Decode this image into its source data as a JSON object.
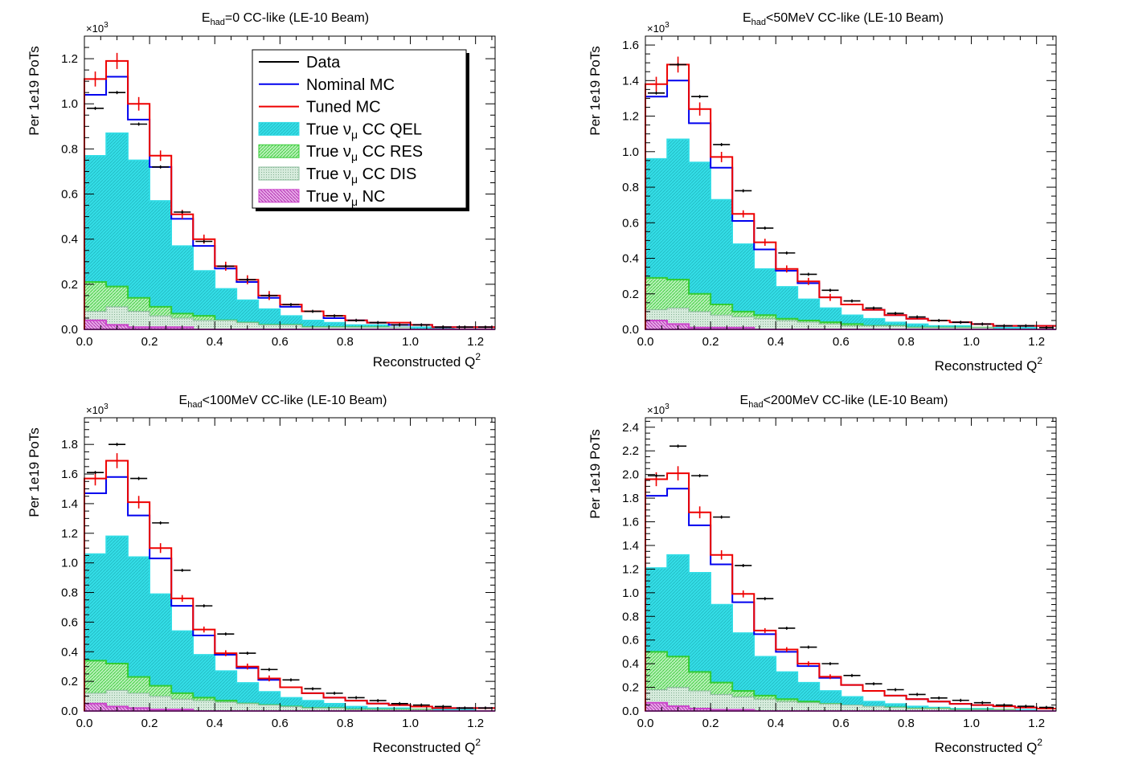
{
  "legend": {
    "entries": [
      {
        "label": "Data",
        "color": "#000000",
        "kind": "line"
      },
      {
        "label": "Nominal MC",
        "color": "#0000ee",
        "kind": "line"
      },
      {
        "label": "Tuned MC",
        "color": "#ee0000",
        "kind": "line"
      },
      {
        "label": "True ",
        "label_sub_greek": "ν",
        "label_sub": "μ",
        "label_tail": " CC QEL",
        "color": "#33dde6",
        "kind": "fill"
      },
      {
        "label": "True ",
        "label_sub_greek": "ν",
        "label_sub": "μ",
        "label_tail": " CC RES",
        "color": "#33cc33",
        "kind": "fill"
      },
      {
        "label": "True ",
        "label_sub_greek": "ν",
        "label_sub": "μ",
        "label_tail": " CC DIS",
        "color": "#88bb99",
        "kind": "fill"
      },
      {
        "label": "True ",
        "label_sub_greek": "ν",
        "label_sub": "μ",
        "label_tail": " NC",
        "color": "#cc44cc",
        "kind": "fill"
      }
    ]
  },
  "colors": {
    "data": "#000000",
    "nominal": "#0000ee",
    "tuned": "#ee0000",
    "qel": "#33dde6",
    "res": "#33cc33",
    "dis": "#88bb99",
    "nc": "#cc44cc"
  },
  "chart_data": [
    {
      "type": "bar",
      "title_main": "E",
      "title_sub": "had",
      "title_rest": "=0 CC-like (LE-10 Beam)",
      "xlabel": "Reconstructed Q",
      "xlabel_sup": "2",
      "ylabel": "Per 1e19 PoTs",
      "y_multiplier": "×10",
      "y_multiplier_sup": "3",
      "xlim": [
        0,
        1.26
      ],
      "ylim": [
        0,
        1.3
      ],
      "bin_width": 0.0667,
      "xticks": [
        "0.0",
        "0.2",
        "0.4",
        "0.6",
        "0.8",
        "1.0",
        "1.2"
      ],
      "yticks": [
        "0.0",
        "0.2",
        "0.4",
        "0.6",
        "0.8",
        "1.0",
        "1.2"
      ],
      "ytick_values": [
        0,
        0.2,
        0.4,
        0.6,
        0.8,
        1.0,
        1.2
      ],
      "show_legend": true,
      "series": [
        {
          "key": "data",
          "values": [
            0.98,
            1.05,
            0.91,
            0.72,
            0.52,
            0.39,
            0.28,
            0.22,
            0.15,
            0.11,
            0.08,
            0.06,
            0.04,
            0.03,
            0.02,
            0.02,
            0.01,
            0.01,
            0.01
          ]
        },
        {
          "key": "nominal",
          "values": [
            1.04,
            1.12,
            0.93,
            0.72,
            0.49,
            0.37,
            0.27,
            0.21,
            0.14,
            0.1,
            0.08,
            0.05,
            0.04,
            0.03,
            0.02,
            0.02,
            0.01,
            0.01,
            0.01
          ]
        },
        {
          "key": "tuned",
          "values": [
            1.11,
            1.19,
            1.0,
            0.77,
            0.51,
            0.4,
            0.28,
            0.22,
            0.15,
            0.11,
            0.08,
            0.06,
            0.04,
            0.03,
            0.03,
            0.02,
            0.01,
            0.01,
            0.01
          ]
        },
        {
          "key": "qel",
          "values": [
            0.77,
            0.87,
            0.75,
            0.57,
            0.37,
            0.26,
            0.18,
            0.13,
            0.09,
            0.06,
            0.04,
            0.03,
            0.02,
            0.02,
            0.01,
            0.01,
            0.01,
            0.0,
            0.0
          ]
        },
        {
          "key": "res",
          "values": [
            0.21,
            0.19,
            0.14,
            0.1,
            0.07,
            0.06,
            0.04,
            0.03,
            0.02,
            0.02,
            0.01,
            0.01,
            0.01,
            0.01,
            0.0,
            0.0,
            0.0,
            0.0,
            0.0
          ]
        },
        {
          "key": "dis",
          "values": [
            0.08,
            0.1,
            0.08,
            0.06,
            0.05,
            0.04,
            0.04,
            0.03,
            0.02,
            0.02,
            0.01,
            0.01,
            0.01,
            0.01,
            0.01,
            0.0,
            0.0,
            0.0,
            0.0
          ]
        },
        {
          "key": "nc",
          "values": [
            0.04,
            0.02,
            0.01,
            0.01,
            0.01,
            0.0,
            0.0,
            0.0,
            0.0,
            0.0,
            0.0,
            0.0,
            0.0,
            0.0,
            0.0,
            0.0,
            0.0,
            0.0,
            0.0
          ]
        }
      ]
    },
    {
      "type": "bar",
      "title_main": "E",
      "title_sub": "had",
      "title_rest": "<50MeV CC-like (LE-10 Beam)",
      "xlabel": "Reconstructed Q",
      "xlabel_sup": "2",
      "ylabel": "Per 1e19 PoTs",
      "y_multiplier": "×10",
      "y_multiplier_sup": "3",
      "xlim": [
        0,
        1.26
      ],
      "ylim": [
        0,
        1.65
      ],
      "bin_width": 0.0667,
      "xticks": [
        "0.0",
        "0.2",
        "0.4",
        "0.6",
        "0.8",
        "1.0",
        "1.2"
      ],
      "yticks": [
        "0.0",
        "0.2",
        "0.4",
        "0.6",
        "0.8",
        "1.0",
        "1.2",
        "1.4",
        "1.6"
      ],
      "ytick_values": [
        0,
        0.2,
        0.4,
        0.6,
        0.8,
        1.0,
        1.2,
        1.4,
        1.6
      ],
      "show_legend": false,
      "series": [
        {
          "key": "data",
          "values": [
            1.33,
            1.49,
            1.31,
            1.04,
            0.78,
            0.57,
            0.43,
            0.31,
            0.22,
            0.16,
            0.12,
            0.09,
            0.07,
            0.05,
            0.04,
            0.03,
            0.02,
            0.02,
            0.01
          ]
        },
        {
          "key": "nominal",
          "values": [
            1.31,
            1.4,
            1.16,
            0.91,
            0.61,
            0.45,
            0.33,
            0.26,
            0.18,
            0.14,
            0.11,
            0.08,
            0.06,
            0.05,
            0.04,
            0.03,
            0.02,
            0.02,
            0.02
          ]
        },
        {
          "key": "tuned",
          "values": [
            1.38,
            1.49,
            1.24,
            0.97,
            0.65,
            0.49,
            0.34,
            0.27,
            0.18,
            0.14,
            0.11,
            0.08,
            0.06,
            0.05,
            0.04,
            0.03,
            0.02,
            0.02,
            0.02
          ]
        },
        {
          "key": "qel",
          "values": [
            0.96,
            1.07,
            0.94,
            0.73,
            0.48,
            0.34,
            0.24,
            0.17,
            0.12,
            0.08,
            0.06,
            0.04,
            0.03,
            0.02,
            0.02,
            0.01,
            0.01,
            0.01,
            0.0
          ]
        },
        {
          "key": "res",
          "values": [
            0.29,
            0.28,
            0.2,
            0.14,
            0.1,
            0.08,
            0.06,
            0.05,
            0.04,
            0.03,
            0.02,
            0.02,
            0.01,
            0.01,
            0.01,
            0.01,
            0.0,
            0.0,
            0.0
          ]
        },
        {
          "key": "dis",
          "values": [
            0.11,
            0.12,
            0.1,
            0.08,
            0.07,
            0.06,
            0.05,
            0.04,
            0.03,
            0.02,
            0.02,
            0.02,
            0.01,
            0.01,
            0.01,
            0.01,
            0.0,
            0.0,
            0.0
          ]
        },
        {
          "key": "nc",
          "values": [
            0.05,
            0.03,
            0.01,
            0.01,
            0.01,
            0.0,
            0.0,
            0.0,
            0.0,
            0.0,
            0.0,
            0.0,
            0.0,
            0.0,
            0.0,
            0.0,
            0.0,
            0.0,
            0.0
          ]
        }
      ]
    },
    {
      "type": "bar",
      "title_main": "E",
      "title_sub": "had",
      "title_rest": "<100MeV CC-like (LE-10 Beam)",
      "xlabel": "Reconstructed Q",
      "xlabel_sup": "2",
      "ylabel": "Per 1e19 PoTs",
      "y_multiplier": "×10",
      "y_multiplier_sup": "3",
      "xlim": [
        0,
        1.26
      ],
      "ylim": [
        0,
        1.98
      ],
      "bin_width": 0.0667,
      "xticks": [
        "0.0",
        "0.2",
        "0.4",
        "0.6",
        "0.8",
        "1.0",
        "1.2"
      ],
      "yticks": [
        "0.0",
        "0.2",
        "0.4",
        "0.6",
        "0.8",
        "1.0",
        "1.2",
        "1.4",
        "1.6",
        "1.8"
      ],
      "ytick_values": [
        0,
        0.2,
        0.4,
        0.6,
        0.8,
        1.0,
        1.2,
        1.4,
        1.6,
        1.8
      ],
      "show_legend": false,
      "series": [
        {
          "key": "data",
          "values": [
            1.61,
            1.8,
            1.57,
            1.27,
            0.95,
            0.71,
            0.52,
            0.39,
            0.28,
            0.21,
            0.15,
            0.12,
            0.09,
            0.07,
            0.05,
            0.04,
            0.03,
            0.02,
            0.02
          ]
        },
        {
          "key": "nominal",
          "values": [
            1.47,
            1.58,
            1.32,
            1.03,
            0.71,
            0.51,
            0.38,
            0.29,
            0.21,
            0.16,
            0.12,
            0.09,
            0.07,
            0.05,
            0.04,
            0.03,
            0.02,
            0.02,
            0.02
          ]
        },
        {
          "key": "tuned",
          "values": [
            1.57,
            1.69,
            1.41,
            1.1,
            0.76,
            0.55,
            0.39,
            0.3,
            0.22,
            0.16,
            0.12,
            0.09,
            0.07,
            0.05,
            0.04,
            0.03,
            0.02,
            0.02,
            0.02
          ]
        },
        {
          "key": "qel",
          "values": [
            1.06,
            1.18,
            1.04,
            0.79,
            0.54,
            0.38,
            0.27,
            0.19,
            0.13,
            0.09,
            0.07,
            0.05,
            0.03,
            0.02,
            0.02,
            0.01,
            0.01,
            0.01,
            0.0
          ]
        },
        {
          "key": "res",
          "values": [
            0.34,
            0.32,
            0.23,
            0.17,
            0.12,
            0.09,
            0.07,
            0.05,
            0.04,
            0.03,
            0.02,
            0.02,
            0.01,
            0.01,
            0.01,
            0.01,
            0.0,
            0.0,
            0.0
          ]
        },
        {
          "key": "dis",
          "values": [
            0.12,
            0.14,
            0.12,
            0.1,
            0.08,
            0.07,
            0.06,
            0.05,
            0.04,
            0.03,
            0.02,
            0.02,
            0.01,
            0.01,
            0.01,
            0.01,
            0.0,
            0.0,
            0.0
          ]
        },
        {
          "key": "nc",
          "values": [
            0.05,
            0.03,
            0.02,
            0.01,
            0.01,
            0.0,
            0.0,
            0.0,
            0.0,
            0.0,
            0.0,
            0.0,
            0.0,
            0.0,
            0.0,
            0.0,
            0.0,
            0.0,
            0.0
          ]
        }
      ]
    },
    {
      "type": "bar",
      "title_main": "E",
      "title_sub": "had",
      "title_rest": "<200MeV CC-like (LE-10 Beam)",
      "xlabel": "Reconstructed Q",
      "xlabel_sup": "2",
      "ylabel": "Per 1e19 PoTs",
      "y_multiplier": "×10",
      "y_multiplier_sup": "3",
      "xlim": [
        0,
        1.26
      ],
      "ylim": [
        0,
        2.48
      ],
      "bin_width": 0.0667,
      "xticks": [
        "0.0",
        "0.2",
        "0.4",
        "0.6",
        "0.8",
        "1.0",
        "1.2"
      ],
      "yticks": [
        "0.0",
        "0.2",
        "0.4",
        "0.6",
        "0.8",
        "1.0",
        "1.2",
        "1.4",
        "1.6",
        "1.8",
        "2.0",
        "2.2",
        "2.4"
      ],
      "ytick_values": [
        0,
        0.2,
        0.4,
        0.6,
        0.8,
        1.0,
        1.2,
        1.4,
        1.6,
        1.8,
        2.0,
        2.2,
        2.4
      ],
      "show_legend": false,
      "series": [
        {
          "key": "data",
          "values": [
            1.99,
            2.24,
            1.99,
            1.64,
            1.23,
            0.95,
            0.7,
            0.54,
            0.4,
            0.3,
            0.23,
            0.18,
            0.14,
            0.11,
            0.09,
            0.07,
            0.05,
            0.04,
            0.03
          ]
        },
        {
          "key": "nominal",
          "values": [
            1.82,
            1.88,
            1.57,
            1.24,
            0.92,
            0.65,
            0.5,
            0.38,
            0.28,
            0.22,
            0.17,
            0.13,
            0.1,
            0.08,
            0.06,
            0.05,
            0.04,
            0.03,
            0.02
          ]
        },
        {
          "key": "tuned",
          "values": [
            1.96,
            2.01,
            1.68,
            1.32,
            0.99,
            0.68,
            0.52,
            0.4,
            0.29,
            0.22,
            0.17,
            0.13,
            0.1,
            0.08,
            0.06,
            0.05,
            0.04,
            0.03,
            0.02
          ]
        },
        {
          "key": "qel",
          "values": [
            1.21,
            1.32,
            1.17,
            0.9,
            0.66,
            0.46,
            0.33,
            0.24,
            0.17,
            0.12,
            0.08,
            0.06,
            0.04,
            0.03,
            0.02,
            0.02,
            0.01,
            0.01,
            0.0
          ]
        },
        {
          "key": "res",
          "values": [
            0.5,
            0.46,
            0.33,
            0.24,
            0.17,
            0.13,
            0.1,
            0.08,
            0.06,
            0.04,
            0.03,
            0.03,
            0.02,
            0.02,
            0.01,
            0.01,
            0.01,
            0.0,
            0.0
          ]
        },
        {
          "key": "dis",
          "values": [
            0.18,
            0.2,
            0.17,
            0.14,
            0.12,
            0.1,
            0.08,
            0.07,
            0.06,
            0.05,
            0.04,
            0.03,
            0.02,
            0.02,
            0.01,
            0.01,
            0.01,
            0.0,
            0.0
          ]
        },
        {
          "key": "nc",
          "values": [
            0.07,
            0.04,
            0.02,
            0.01,
            0.01,
            0.0,
            0.0,
            0.0,
            0.0,
            0.0,
            0.0,
            0.0,
            0.0,
            0.0,
            0.0,
            0.0,
            0.0,
            0.0,
            0.0
          ]
        }
      ]
    }
  ]
}
